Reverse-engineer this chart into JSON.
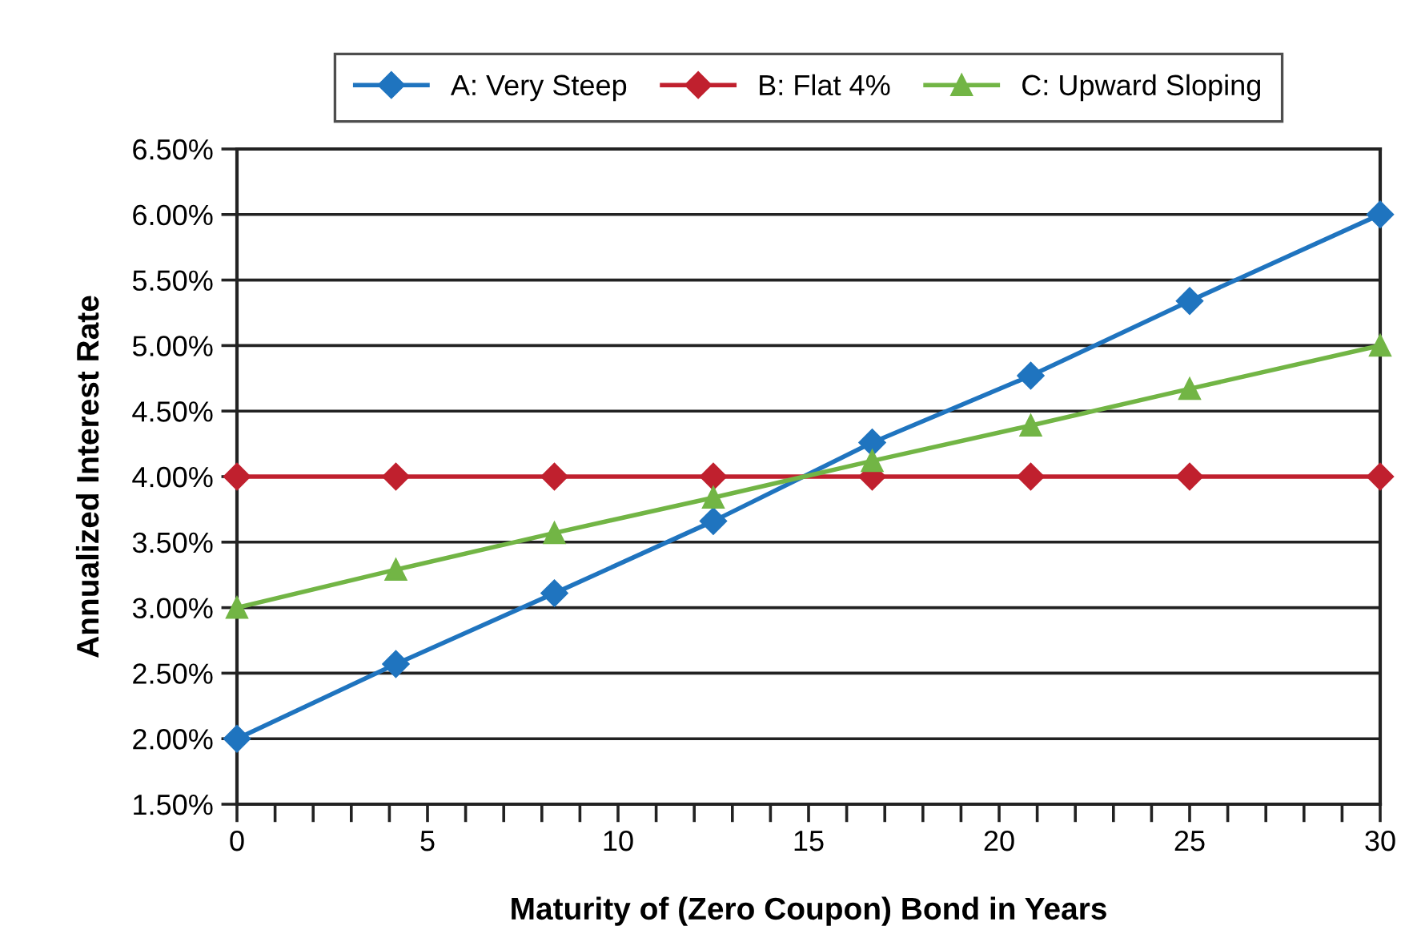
{
  "chart_data": {
    "type": "line",
    "xlabel": "Maturity of (Zero Coupon) Bond in Years",
    "ylabel": "Annualized Interest Rate",
    "x": [
      0,
      4.17,
      8.33,
      12.5,
      16.67,
      20.83,
      25,
      30
    ],
    "series": [
      {
        "name": "A: Very Steep",
        "color": "#1f74bf",
        "marker": "diamond",
        "values": [
          2.0,
          2.57,
          3.11,
          3.66,
          4.26,
          4.77,
          5.34,
          6.0
        ]
      },
      {
        "name": "B: Flat 4%",
        "color": "#c0202e",
        "marker": "diamond",
        "values": [
          4.0,
          4.0,
          4.0,
          4.0,
          4.0,
          4.0,
          4.0,
          4.0
        ]
      },
      {
        "name": "C: Upward Sloping",
        "color": "#72b545",
        "marker": "triangle",
        "values": [
          3.0,
          3.29,
          3.57,
          3.84,
          4.12,
          4.39,
          4.67,
          5.0
        ]
      }
    ],
    "xlim": [
      0,
      30
    ],
    "xticks": [
      0,
      5,
      10,
      15,
      20,
      25,
      30
    ],
    "ylim": [
      1.5,
      6.5
    ],
    "yticks": [
      {
        "value": 1.5,
        "label": "1.50%"
      },
      {
        "value": 2.0,
        "label": "2.00%"
      },
      {
        "value": 2.5,
        "label": "2.50%"
      },
      {
        "value": 3.0,
        "label": "3.00%"
      },
      {
        "value": 3.5,
        "label": "3.50%"
      },
      {
        "value": 4.0,
        "label": "4.00%"
      },
      {
        "value": 4.5,
        "label": "4.50%"
      },
      {
        "value": 5.0,
        "label": "5.00%"
      },
      {
        "value": 5.5,
        "label": "5.50%"
      },
      {
        "value": 6.0,
        "label": "6.00%"
      },
      {
        "value": 6.5,
        "label": "6.50%"
      }
    ],
    "grid": "y",
    "legend": "top",
    "line_style": "solid"
  }
}
